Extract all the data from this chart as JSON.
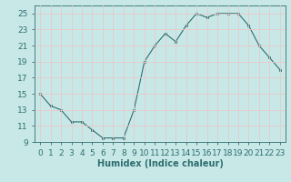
{
  "x": [
    0,
    1,
    2,
    3,
    4,
    5,
    6,
    7,
    8,
    9,
    10,
    11,
    12,
    13,
    14,
    15,
    16,
    17,
    18,
    19,
    20,
    21,
    22,
    23
  ],
  "y": [
    15,
    13.5,
    13,
    11.5,
    11.5,
    10.5,
    9.5,
    9.5,
    9.5,
    13,
    19,
    21,
    22.5,
    21.5,
    23.5,
    25,
    24.5,
    25,
    25,
    25,
    23.5,
    21,
    19.5,
    18
  ],
  "line_color": "#2e6e6e",
  "marker_color": "#2e6e6e",
  "bg_color": "#c8e8e8",
  "grid_color": "#e8c8c8",
  "xlabel": "Humidex (Indice chaleur)",
  "ylim": [
    9,
    26
  ],
  "xlim": [
    -0.5,
    23.5
  ],
  "yticks": [
    9,
    11,
    13,
    15,
    17,
    19,
    21,
    23,
    25
  ],
  "xtick_labels": [
    "0",
    "1",
    "2",
    "3",
    "4",
    "5",
    "6",
    "7",
    "8",
    "9",
    "10",
    "11",
    "12",
    "13",
    "14",
    "15",
    "16",
    "17",
    "18",
    "19",
    "20",
    "21",
    "22",
    "23"
  ],
  "xlabel_fontsize": 7,
  "tick_fontsize": 6.5
}
